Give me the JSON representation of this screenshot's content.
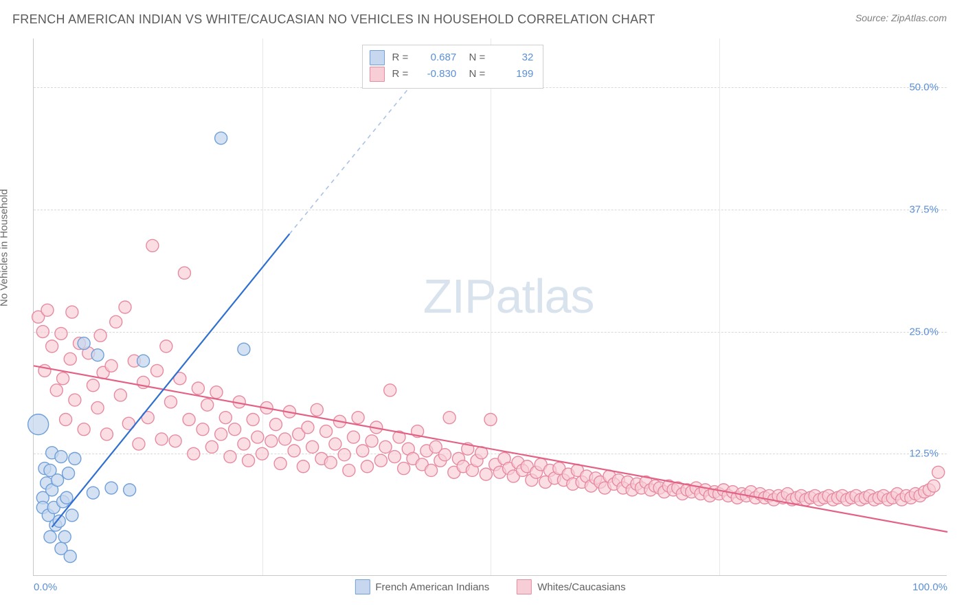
{
  "header": {
    "title": "FRENCH AMERICAN INDIAN VS WHITE/CAUCASIAN NO VEHICLES IN HOUSEHOLD CORRELATION CHART",
    "source": "Source: ZipAtlas.com"
  },
  "watermark": {
    "prefix": "ZIP",
    "suffix": "atlas"
  },
  "chart": {
    "type": "scatter",
    "background_color": "#ffffff",
    "grid_color_h": "#d8d8d8",
    "grid_color_v": "#e8e8e8",
    "axis_color": "#c8c8c8",
    "ylabel": "No Vehicles in Household",
    "ylabel_color": "#6a6a6a",
    "xlim": [
      0,
      100
    ],
    "ylim": [
      0,
      55
    ],
    "yticks": [
      {
        "v": 12.5,
        "label": "12.5%"
      },
      {
        "v": 25.0,
        "label": "25.0%"
      },
      {
        "v": 37.5,
        "label": "37.5%"
      },
      {
        "v": 50.0,
        "label": "50.0%"
      }
    ],
    "xticks": [
      {
        "v": 0,
        "label": "0.0%",
        "cls": "first"
      },
      {
        "v": 25,
        "label": ""
      },
      {
        "v": 50,
        "label": ""
      },
      {
        "v": 75,
        "label": ""
      },
      {
        "v": 100,
        "label": "100.0%",
        "cls": "last"
      }
    ],
    "tick_label_color": "#5b8fd6",
    "tick_fontsize": 15,
    "series": [
      {
        "name": "French American Indians",
        "fill": "#c6d7ef",
        "stroke": "#6f9fd8",
        "fill_opacity": 0.75,
        "line_color": "#2f6fd0",
        "line_dash_color": "#a9c2e6",
        "line_width": 2.2,
        "marker_r": 9,
        "trend": {
          "x1": 2,
          "y1": 5,
          "x2": 28,
          "y2": 35,
          "dash_to_x": 42,
          "dash_to_y": 51
        },
        "stats": {
          "R": "0.687",
          "N": "32"
        },
        "points": [
          [
            0.5,
            15.5,
            15
          ],
          [
            1,
            8
          ],
          [
            1,
            7
          ],
          [
            1.2,
            11
          ],
          [
            1.4,
            9.5
          ],
          [
            1.6,
            6.2
          ],
          [
            1.8,
            4.0
          ],
          [
            1.8,
            10.8
          ],
          [
            2,
            8.8
          ],
          [
            2,
            12.6
          ],
          [
            2.2,
            7.0
          ],
          [
            2.4,
            5.2
          ],
          [
            2.6,
            9.8
          ],
          [
            2.8,
            5.6
          ],
          [
            3.0,
            2.8
          ],
          [
            3.0,
            12.2
          ],
          [
            3.2,
            7.6
          ],
          [
            3.4,
            4.0
          ],
          [
            3.6,
            8.0
          ],
          [
            3.8,
            10.5
          ],
          [
            4.0,
            2.0
          ],
          [
            4.2,
            6.2
          ],
          [
            4.5,
            12.0
          ],
          [
            5.5,
            23.8
          ],
          [
            6.5,
            8.5
          ],
          [
            7.0,
            22.6
          ],
          [
            8.5,
            9.0
          ],
          [
            10.5,
            8.8
          ],
          [
            12.0,
            22.0
          ],
          [
            20.5,
            44.8
          ],
          [
            23.0,
            23.2
          ]
        ]
      },
      {
        "name": "Whites/Caucasians",
        "fill": "#f7cdd6",
        "stroke": "#e78aa0",
        "fill_opacity": 0.65,
        "line_color": "#e26184",
        "line_width": 2.2,
        "marker_r": 9,
        "trend": {
          "x1": 0,
          "y1": 21.5,
          "x2": 100,
          "y2": 4.5
        },
        "stats": {
          "R": "-0.830",
          "N": "199"
        },
        "points": [
          [
            0.5,
            26.5
          ],
          [
            1,
            25.0
          ],
          [
            1.2,
            21.0
          ],
          [
            1.5,
            27.2
          ],
          [
            2,
            23.5
          ],
          [
            2.5,
            19.0
          ],
          [
            3,
            24.8
          ],
          [
            3.2,
            20.2
          ],
          [
            3.5,
            16.0
          ],
          [
            4,
            22.2
          ],
          [
            4.2,
            27.0
          ],
          [
            4.5,
            18.0
          ],
          [
            5,
            23.8
          ],
          [
            5.5,
            15.0
          ],
          [
            6,
            22.8
          ],
          [
            6.5,
            19.5
          ],
          [
            7,
            17.2
          ],
          [
            7.3,
            24.6
          ],
          [
            7.6,
            20.8
          ],
          [
            8,
            14.5
          ],
          [
            8.5,
            21.5
          ],
          [
            9,
            26.0
          ],
          [
            9.5,
            18.5
          ],
          [
            10,
            27.5
          ],
          [
            10.4,
            15.6
          ],
          [
            11,
            22.0
          ],
          [
            11.5,
            13.5
          ],
          [
            12,
            19.8
          ],
          [
            12.5,
            16.2
          ],
          [
            13,
            33.8
          ],
          [
            13.5,
            21.0
          ],
          [
            14,
            14.0
          ],
          [
            14.5,
            23.5
          ],
          [
            15,
            17.8
          ],
          [
            15.5,
            13.8
          ],
          [
            16,
            20.2
          ],
          [
            16.5,
            31.0
          ],
          [
            17,
            16.0
          ],
          [
            17.5,
            12.5
          ],
          [
            18,
            19.2
          ],
          [
            18.5,
            15.0
          ],
          [
            19,
            17.5
          ],
          [
            19.5,
            13.2
          ],
          [
            20,
            18.8
          ],
          [
            20.5,
            14.5
          ],
          [
            21,
            16.2
          ],
          [
            21.5,
            12.2
          ],
          [
            22,
            15.0
          ],
          [
            22.5,
            17.8
          ],
          [
            23,
            13.5
          ],
          [
            23.5,
            11.8
          ],
          [
            24,
            16.0
          ],
          [
            24.5,
            14.2
          ],
          [
            25,
            12.5
          ],
          [
            25.5,
            17.2
          ],
          [
            26,
            13.8
          ],
          [
            26.5,
            15.5
          ],
          [
            27,
            11.5
          ],
          [
            27.5,
            14.0
          ],
          [
            28,
            16.8
          ],
          [
            28.5,
            12.8
          ],
          [
            29,
            14.5
          ],
          [
            29.5,
            11.2
          ],
          [
            30,
            15.2
          ],
          [
            30.5,
            13.2
          ],
          [
            31,
            17.0
          ],
          [
            31.5,
            12.0
          ],
          [
            32,
            14.8
          ],
          [
            32.5,
            11.6
          ],
          [
            33,
            13.5
          ],
          [
            33.5,
            15.8
          ],
          [
            34,
            12.4
          ],
          [
            34.5,
            10.8
          ],
          [
            35,
            14.2
          ],
          [
            35.5,
            16.2
          ],
          [
            36,
            12.8
          ],
          [
            36.5,
            11.2
          ],
          [
            37,
            13.8
          ],
          [
            37.5,
            15.2
          ],
          [
            38,
            11.8
          ],
          [
            38.5,
            13.2
          ],
          [
            39,
            19.0
          ],
          [
            39.5,
            12.2
          ],
          [
            40,
            14.2
          ],
          [
            40.5,
            11.0
          ],
          [
            41,
            13.0
          ],
          [
            41.5,
            12.0
          ],
          [
            42,
            14.8
          ],
          [
            42.5,
            11.4
          ],
          [
            43,
            12.8
          ],
          [
            43.5,
            10.8
          ],
          [
            44,
            13.2
          ],
          [
            44.5,
            11.8
          ],
          [
            45,
            12.4
          ],
          [
            45.5,
            16.2
          ],
          [
            46,
            10.6
          ],
          [
            46.5,
            12.0
          ],
          [
            47,
            11.2
          ],
          [
            47.5,
            13.0
          ],
          [
            48,
            10.8
          ],
          [
            48.5,
            11.8
          ],
          [
            49,
            12.6
          ],
          [
            49.5,
            10.4
          ],
          [
            50,
            16.0
          ],
          [
            50.5,
            11.4
          ],
          [
            51,
            10.6
          ],
          [
            51.5,
            12.0
          ],
          [
            52,
            11.0
          ],
          [
            52.5,
            10.2
          ],
          [
            53,
            11.6
          ],
          [
            53.5,
            10.8
          ],
          [
            54,
            11.2
          ],
          [
            54.5,
            9.8
          ],
          [
            55,
            10.6
          ],
          [
            55.5,
            11.4
          ],
          [
            56,
            9.6
          ],
          [
            56.5,
            10.8
          ],
          [
            57,
            10.0
          ],
          [
            57.5,
            11.0
          ],
          [
            58,
            9.8
          ],
          [
            58.5,
            10.4
          ],
          [
            59,
            9.4
          ],
          [
            59.5,
            10.8
          ],
          [
            60,
            9.6
          ],
          [
            60.5,
            10.2
          ],
          [
            61,
            9.2
          ],
          [
            61.5,
            10.0
          ],
          [
            62,
            9.6
          ],
          [
            62.5,
            9.0
          ],
          [
            63,
            10.2
          ],
          [
            63.5,
            9.4
          ],
          [
            64,
            9.8
          ],
          [
            64.5,
            9.0
          ],
          [
            65,
            9.6
          ],
          [
            65.5,
            8.8
          ],
          [
            66,
            9.4
          ],
          [
            66.5,
            9.0
          ],
          [
            67,
            9.6
          ],
          [
            67.5,
            8.8
          ],
          [
            68,
            9.2
          ],
          [
            68.5,
            9.0
          ],
          [
            69,
            8.6
          ],
          [
            69.5,
            9.2
          ],
          [
            70,
            8.8
          ],
          [
            70.5,
            9.0
          ],
          [
            71,
            8.4
          ],
          [
            71.5,
            8.8
          ],
          [
            72,
            8.6
          ],
          [
            72.5,
            9.0
          ],
          [
            73,
            8.4
          ],
          [
            73.5,
            8.8
          ],
          [
            74,
            8.2
          ],
          [
            74.5,
            8.6
          ],
          [
            75,
            8.4
          ],
          [
            75.5,
            8.8
          ],
          [
            76,
            8.2
          ],
          [
            76.5,
            8.6
          ],
          [
            77,
            8.0
          ],
          [
            77.5,
            8.4
          ],
          [
            78,
            8.2
          ],
          [
            78.5,
            8.6
          ],
          [
            79,
            8.0
          ],
          [
            79.5,
            8.4
          ],
          [
            80,
            8.0
          ],
          [
            80.5,
            8.2
          ],
          [
            81,
            7.8
          ],
          [
            81.5,
            8.2
          ],
          [
            82,
            8.0
          ],
          [
            82.5,
            8.4
          ],
          [
            83,
            7.8
          ],
          [
            83.5,
            8.0
          ],
          [
            84,
            8.2
          ],
          [
            84.5,
            7.8
          ],
          [
            85,
            8.0
          ],
          [
            85.5,
            8.2
          ],
          [
            86,
            7.8
          ],
          [
            86.5,
            8.0
          ],
          [
            87,
            8.2
          ],
          [
            87.5,
            7.8
          ],
          [
            88,
            8.0
          ],
          [
            88.5,
            8.2
          ],
          [
            89,
            7.8
          ],
          [
            89.5,
            8.0
          ],
          [
            90,
            8.2
          ],
          [
            90.5,
            7.8
          ],
          [
            91,
            8.0
          ],
          [
            91.5,
            8.2
          ],
          [
            92,
            7.8
          ],
          [
            92.5,
            8.0
          ],
          [
            93,
            8.2
          ],
          [
            93.5,
            7.8
          ],
          [
            94,
            8.0
          ],
          [
            94.5,
            8.4
          ],
          [
            95,
            7.8
          ],
          [
            95.5,
            8.2
          ],
          [
            96,
            8.0
          ],
          [
            96.5,
            8.4
          ],
          [
            97,
            8.2
          ],
          [
            97.5,
            8.6
          ],
          [
            98,
            8.8
          ],
          [
            98.5,
            9.2
          ],
          [
            99,
            10.6
          ]
        ]
      }
    ],
    "stats_box": {
      "left_pct": 36,
      "top_pct": 1.2
    },
    "legend": {
      "items": [
        {
          "label": "French American Indians",
          "fill": "#c6d7ef",
          "stroke": "#6f9fd8"
        },
        {
          "label": "Whites/Caucasians",
          "fill": "#f7cdd6",
          "stroke": "#e78aa0"
        }
      ]
    }
  }
}
